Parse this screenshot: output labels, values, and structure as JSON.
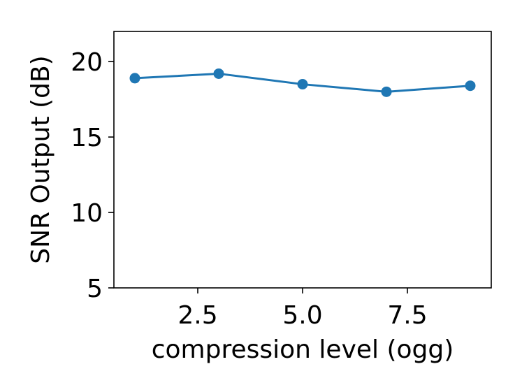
{
  "chart_data": {
    "type": "line",
    "xlabel": "compression level (ogg)",
    "ylabel": "SNR Output (dB)",
    "xlim": [
      0.5,
      9.5
    ],
    "ylim": [
      5,
      22
    ],
    "x_ticks": [
      2.5,
      5.0,
      7.5
    ],
    "x_tick_labels": [
      "2.5",
      "5.0",
      "7.5"
    ],
    "y_ticks": [
      5,
      10,
      15,
      20
    ],
    "y_tick_labels": [
      "5",
      "10",
      "15",
      "20"
    ],
    "grid": false,
    "series": [
      {
        "x": [
          1,
          3,
          5,
          7,
          9
        ],
        "y": [
          18.9,
          19.2,
          18.5,
          18.0,
          18.4
        ],
        "color": "#1f77b4",
        "marker": "circle"
      }
    ]
  }
}
